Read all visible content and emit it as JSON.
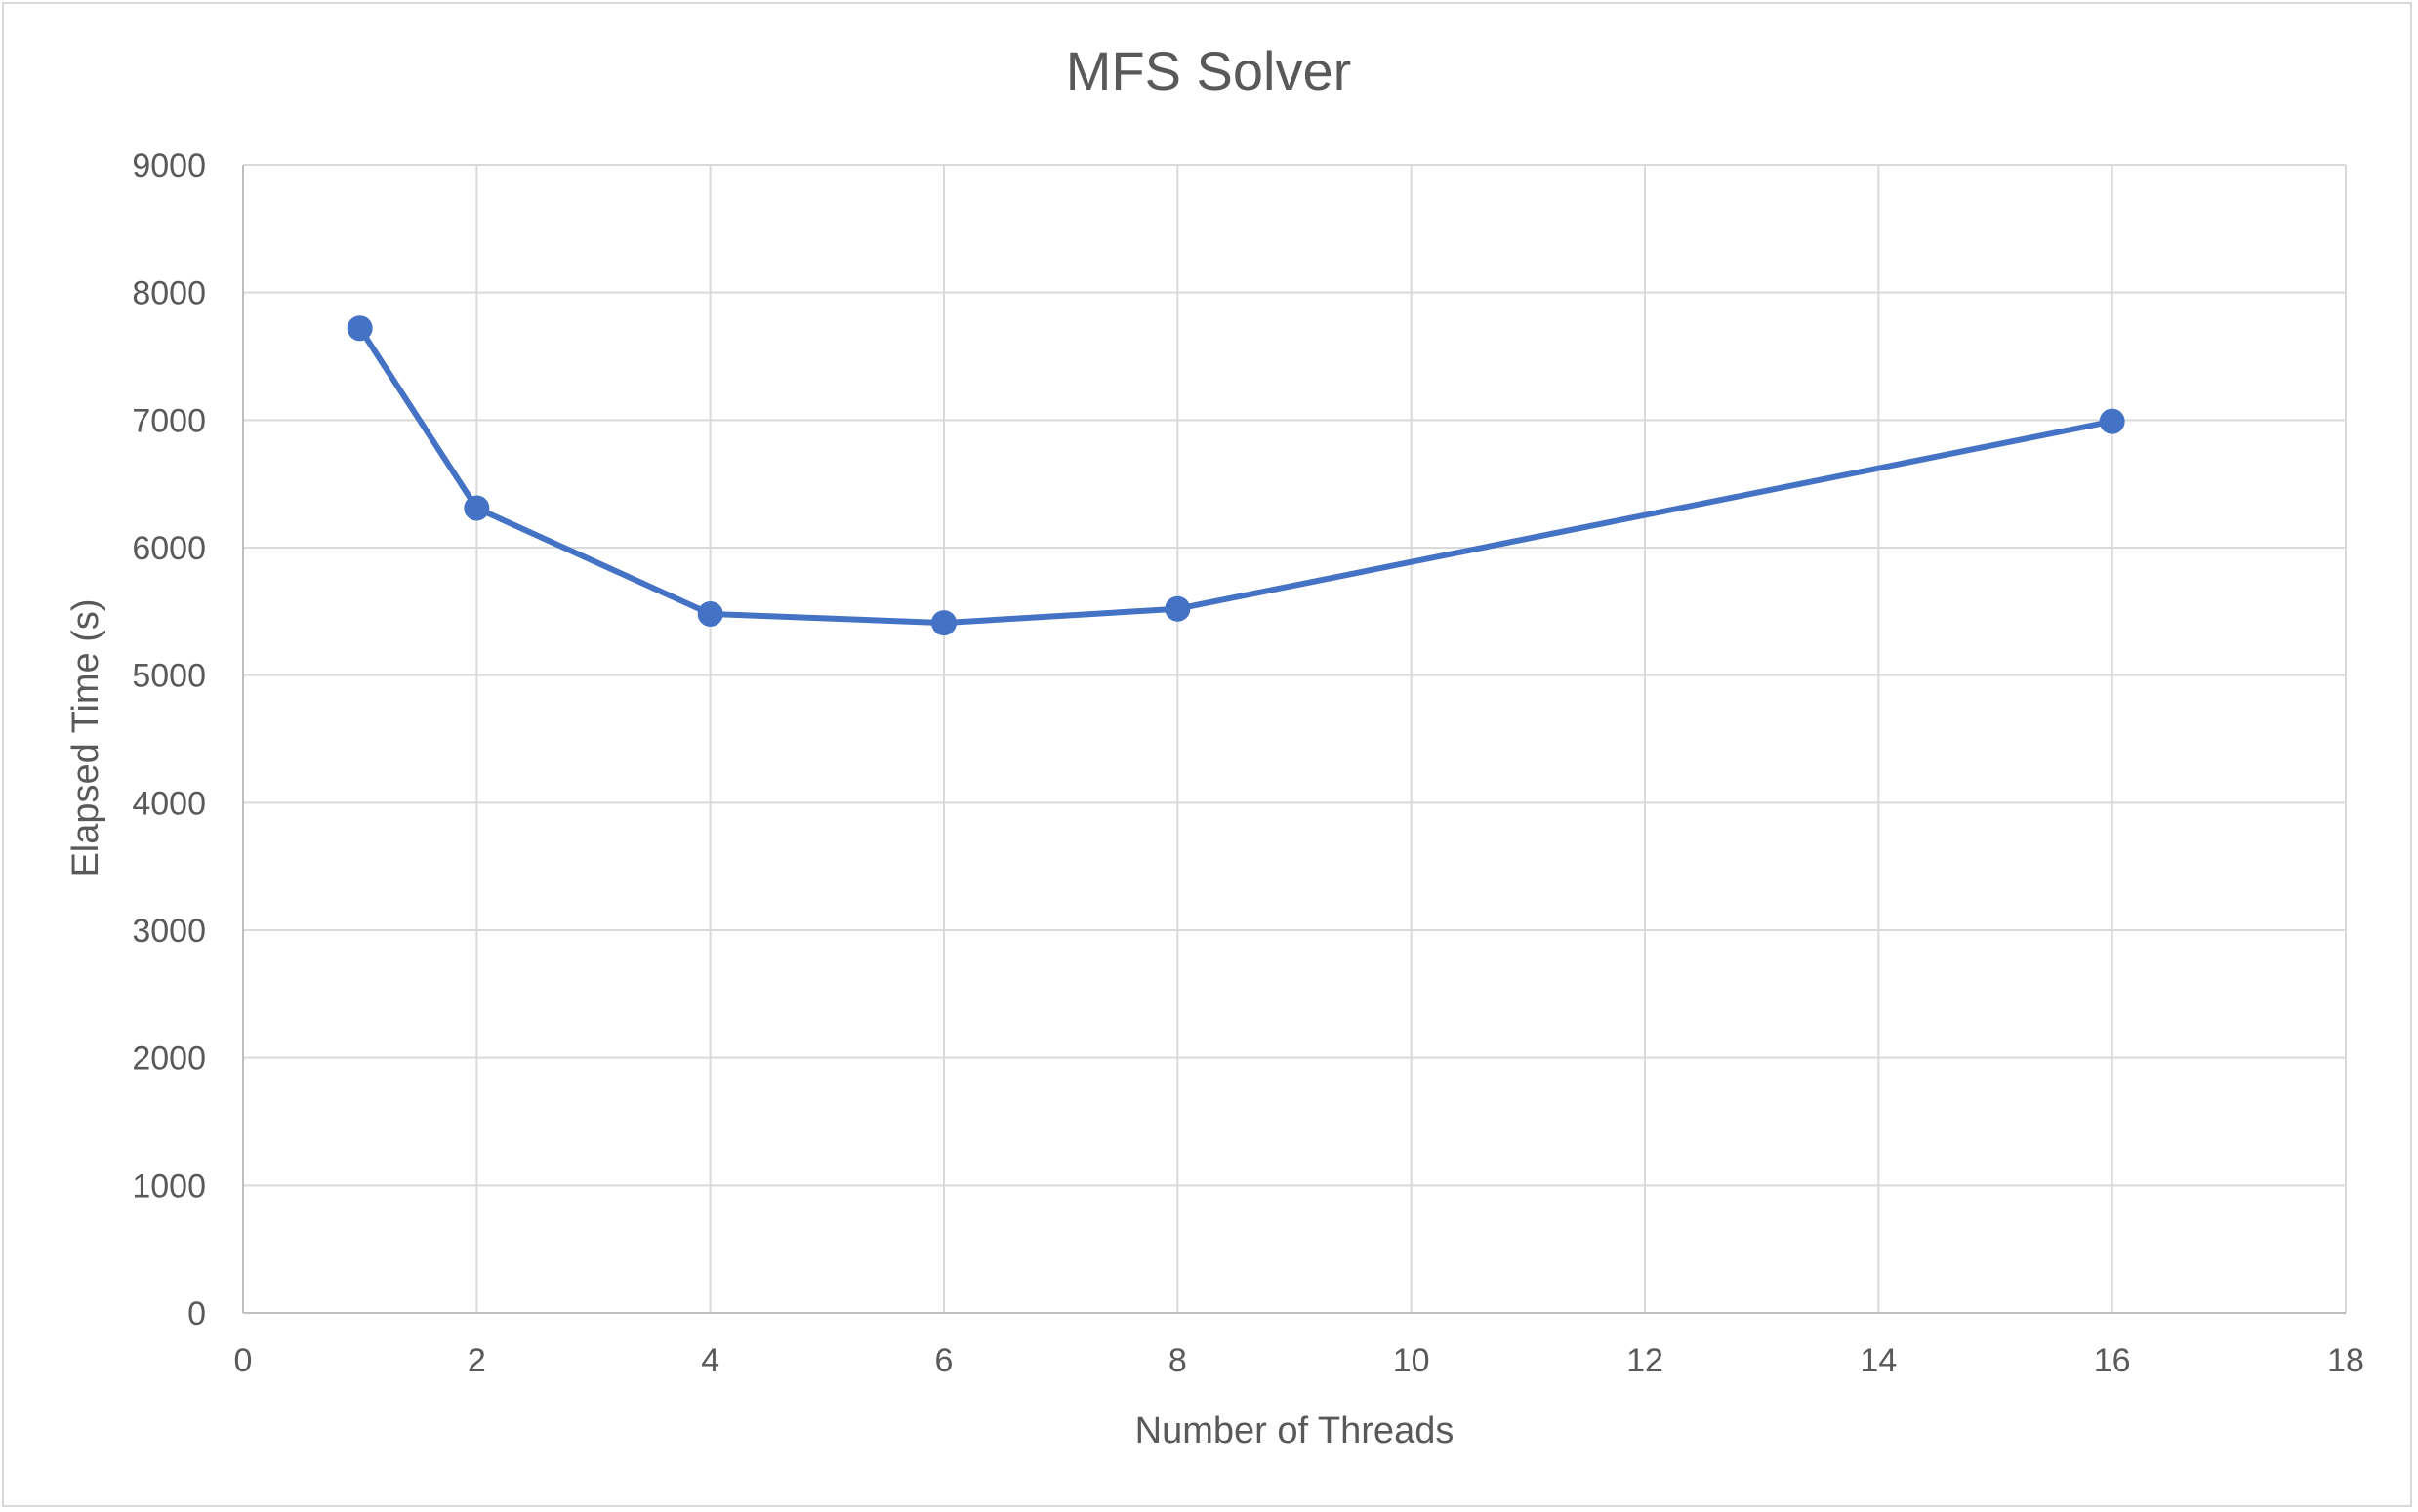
{
  "chart_data": {
    "type": "scatter",
    "title": "MFS Solver",
    "xlabel": "Number of Threads",
    "ylabel": "Elapsed Time (s)",
    "xlim": [
      0,
      18
    ],
    "ylim": [
      0,
      9000
    ],
    "xticks": [
      0,
      2,
      4,
      6,
      8,
      10,
      12,
      14,
      16,
      18
    ],
    "yticks": [
      0,
      1000,
      2000,
      3000,
      4000,
      5000,
      6000,
      7000,
      8000,
      9000
    ],
    "grid": true,
    "legend": "none",
    "series": [
      {
        "color": "#4472c4",
        "line": "straight",
        "markers": true,
        "x": [
          1,
          2,
          4,
          6,
          8,
          16
        ],
        "y": [
          7720,
          6310,
          5480,
          5410,
          5520,
          6990
        ]
      }
    ]
  }
}
